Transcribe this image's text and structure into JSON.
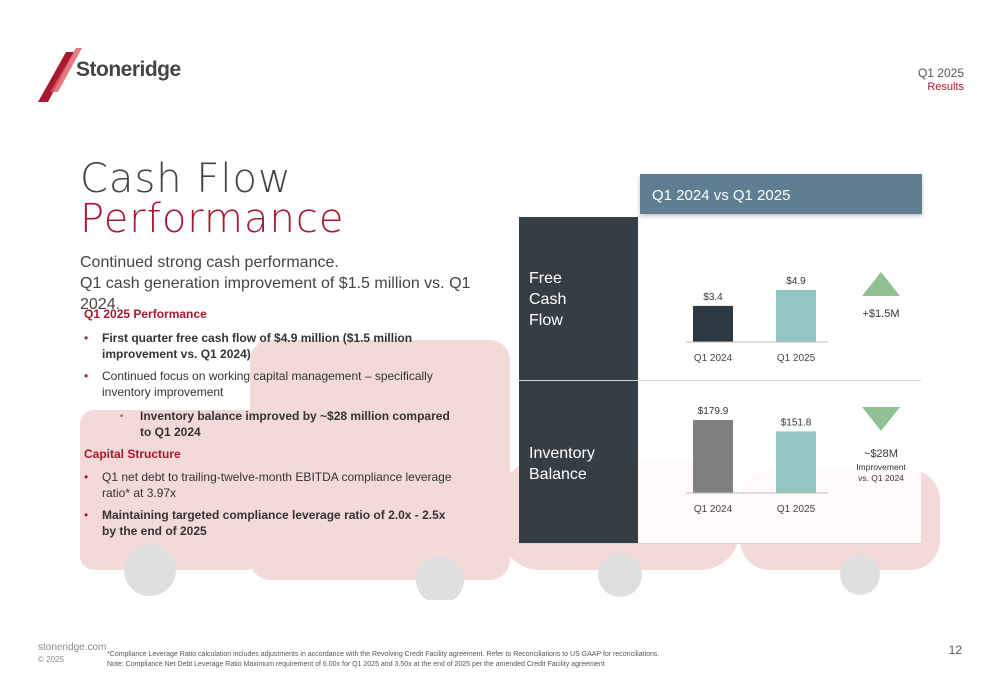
{
  "brand": {
    "name": "Stoneridge",
    "color": "#a6192e"
  },
  "header": {
    "quarter": "Q1 2025",
    "subtitle": "Results"
  },
  "title": {
    "line1": "Cash Flow",
    "line2": "Performance"
  },
  "subtitle": {
    "line1": "Continued strong cash performance.",
    "line2": "Q1 cash generation improvement of $1.5 million vs. Q1 2024."
  },
  "sections": {
    "performance": {
      "heading": "Q1 2025 Performance",
      "bullet1": "First quarter free cash flow of $4.9 million ($1.5 million improvement vs. Q1 2024)",
      "bullet2": "Continued focus on working capital management – specifically inventory improvement",
      "sub_bullet1": "Inventory balance improved by ~$28 million compared to Q1 2024"
    },
    "capital": {
      "heading": "Capital Structure",
      "bullet1": "Q1 net debt to trailing-twelve-month EBITDA compliance leverage ratio* at 3.97x",
      "bullet2": "Maintaining targeted compliance leverage ratio of 2.0x - 2.5x by the end of 2025"
    }
  },
  "panel": {
    "header": "Q1 2024 vs Q1 2025",
    "row1_label": [
      "Free",
      "Cash",
      "Flow"
    ],
    "row2_label": [
      "Inventory",
      "Balance"
    ]
  },
  "chart_data": [
    {
      "type": "bar",
      "categories": [
        "Q1 2024",
        "Q1 2025"
      ],
      "values": [
        3.4,
        4.9
      ],
      "data_labels": [
        "$3.4",
        "$4.9"
      ],
      "colors": [
        "#2c3a44",
        "#93c5c2"
      ],
      "change_label": "+$1.5M",
      "change_note": "",
      "change_direction": "up",
      "indicator_color": "#8fc193"
    },
    {
      "type": "bar",
      "categories": [
        "Q1 2024",
        "Q1 2025"
      ],
      "values": [
        179.9,
        151.8
      ],
      "data_labels": [
        "$179.9",
        "$151.8"
      ],
      "colors": [
        "#808080",
        "#93c5c2"
      ],
      "change_label": "~$28M",
      "change_note": [
        "Improvement",
        "vs. Q1 2024"
      ],
      "change_direction": "down",
      "indicator_color": "#8fc193"
    }
  ],
  "footer": {
    "site": "stoneridge.com",
    "copyright": "© 2025",
    "page": "12",
    "footnote1": "*Compliance Leverage Ratio calculation includes adjustments in accordance with the Revolving Credit Facility agreement. Refer to Reconciliations to US GAAP for reconciliations.",
    "footnote2": "Note: Compliance Net Debt Leverage Ratio Maximum requirement of 6.00x for Q1 2025 and 3.50x at the end of 2025 per the amended Credit Facility agreement"
  }
}
